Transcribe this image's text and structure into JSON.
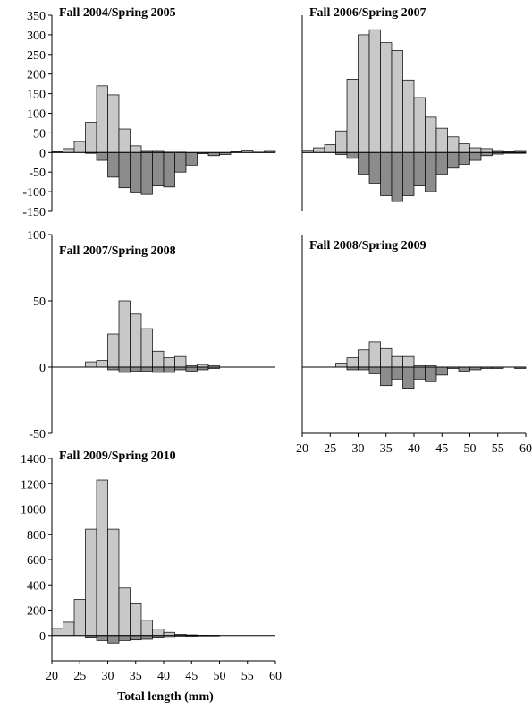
{
  "figure": {
    "xlabel": "Total length (mm)",
    "colors": {
      "fall": "#c8c8c8",
      "spring": "#8c8c8c",
      "stroke": "#000000"
    }
  },
  "chart_data": [
    {
      "type": "bar",
      "title": "Fall 2004/Spring 2005",
      "xlim": [
        20,
        60
      ],
      "ylim": [
        -150,
        350
      ],
      "yticks": [
        350,
        300,
        250,
        200,
        150,
        100,
        50,
        0,
        -50,
        -100,
        -150
      ],
      "xticks": [],
      "bin_starts": [
        20,
        22,
        24,
        26,
        28,
        30,
        32,
        34,
        36,
        38,
        40,
        42,
        44,
        46,
        48,
        50,
        52,
        54,
        56,
        58
      ],
      "series": [
        {
          "values": [
            2,
            10,
            28,
            77,
            170,
            147,
            60,
            17,
            3,
            3,
            1,
            1,
            0,
            0,
            0,
            0,
            2,
            4,
            1,
            3
          ]
        },
        {
          "values": [
            0,
            0,
            0,
            -2,
            -20,
            -63,
            -90,
            -103,
            -107,
            -85,
            -88,
            -50,
            -32,
            -3,
            -8,
            -5,
            0,
            0,
            0,
            0
          ]
        }
      ]
    },
    {
      "type": "bar",
      "title": "Fall 2006/Spring 2007",
      "xlim": [
        20,
        60
      ],
      "ylim": [
        -150,
        350
      ],
      "yticks": [],
      "xticks": [],
      "bin_starts": [
        20,
        22,
        24,
        26,
        28,
        30,
        32,
        34,
        36,
        38,
        40,
        42,
        44,
        46,
        48,
        50,
        52,
        54,
        56,
        58
      ],
      "series": [
        {
          "values": [
            5,
            12,
            20,
            55,
            187,
            300,
            313,
            280,
            260,
            185,
            140,
            90,
            62,
            40,
            22,
            12,
            10,
            3,
            2,
            3
          ]
        },
        {
          "values": [
            0,
            0,
            0,
            -5,
            -15,
            -55,
            -78,
            -110,
            -125,
            -110,
            -85,
            -100,
            -55,
            -40,
            -30,
            -20,
            -8,
            -4,
            -2,
            -2
          ]
        }
      ]
    },
    {
      "type": "bar",
      "title": "Fall 2007/Spring 2008",
      "xlim": [
        20,
        60
      ],
      "ylim": [
        -50,
        100
      ],
      "yticks": [
        100,
        50,
        0,
        -50
      ],
      "xticks": [],
      "bin_starts": [
        20,
        22,
        24,
        26,
        28,
        30,
        32,
        34,
        36,
        38,
        40,
        42,
        44,
        46,
        48,
        50,
        52,
        54,
        56,
        58
      ],
      "series": [
        {
          "values": [
            0,
            0,
            0,
            4,
            5,
            25,
            50,
            40,
            29,
            12,
            7,
            8,
            1,
            2,
            1,
            0,
            0,
            0,
            0,
            0
          ]
        },
        {
          "values": [
            0,
            0,
            0,
            0,
            0,
            -2,
            -4,
            -3,
            -3,
            -4,
            -4,
            -2,
            -3,
            -2,
            -1,
            0,
            0,
            0,
            0,
            0
          ]
        }
      ]
    },
    {
      "type": "bar",
      "title": "Fall 2008/Spring 2009",
      "xlim": [
        20,
        60
      ],
      "ylim": [
        -50,
        100
      ],
      "yticks": [],
      "xticks": [
        20,
        25,
        30,
        35,
        40,
        45,
        50,
        55,
        60
      ],
      "bin_starts": [
        20,
        22,
        24,
        26,
        28,
        30,
        32,
        34,
        36,
        38,
        40,
        42,
        44,
        46,
        48,
        50,
        52,
        54,
        56,
        58
      ],
      "series": [
        {
          "values": [
            0,
            0,
            0,
            3,
            7,
            13,
            19,
            14,
            8,
            8,
            1,
            1,
            0,
            0,
            0,
            0,
            0,
            0,
            0,
            0
          ]
        },
        {
          "values": [
            0,
            0,
            0,
            0,
            -2,
            -2,
            -5,
            -14,
            -9,
            -16,
            -9,
            -11,
            -6,
            -1,
            -3,
            -2,
            -1,
            -1,
            0,
            -1
          ]
        }
      ]
    },
    {
      "type": "bar",
      "title": "Fall 2009/Spring 2010",
      "xlim": [
        20,
        60
      ],
      "ylim": [
        -200,
        1400
      ],
      "yticks": [
        1400,
        1200,
        1000,
        800,
        600,
        400,
        200,
        0
      ],
      "xticks": [
        20,
        25,
        30,
        35,
        40,
        45,
        50,
        55,
        60
      ],
      "bin_starts": [
        20,
        22,
        24,
        26,
        28,
        30,
        32,
        34,
        36,
        38,
        40,
        42,
        44,
        46,
        48,
        50,
        52,
        54,
        56,
        58
      ],
      "series": [
        {
          "values": [
            55,
            105,
            285,
            840,
            1230,
            840,
            375,
            250,
            120,
            50,
            25,
            10,
            5,
            2,
            1,
            0,
            0,
            0,
            0,
            0
          ]
        },
        {
          "values": [
            0,
            0,
            0,
            -20,
            -40,
            -60,
            -40,
            -35,
            -30,
            -20,
            -15,
            -10,
            -5,
            -3,
            -2,
            0,
            0,
            0,
            0,
            0
          ]
        }
      ]
    }
  ]
}
